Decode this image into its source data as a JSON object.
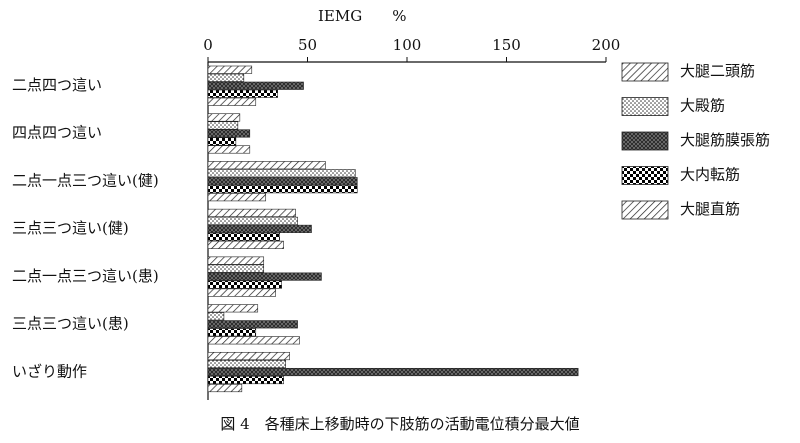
{
  "chart_data": {
    "type": "hbar",
    "xlabel": "IEMG　　%",
    "caption": "図 4　各種床上移動時の下肢筋の活動電位積分最大値",
    "categories": [
      "二点四つ這い",
      "四点四つ這い",
      "二点一点三つ這い(健)",
      "三点三つ這い(健)",
      "二点一点三つ這い(患)",
      "三点三つ這い(患)",
      "いざり動作"
    ],
    "series": [
      {
        "name": "大腿二頭筋",
        "pattern": "hatch",
        "values": [
          22,
          16,
          59,
          44,
          28,
          25,
          41
        ]
      },
      {
        "name": "大殿筋",
        "pattern": "dots",
        "values": [
          18,
          15,
          74,
          45,
          28,
          8,
          39
        ]
      },
      {
        "name": "大腿筋膜張筋",
        "pattern": "dark",
        "values": [
          48,
          21,
          75,
          52,
          57,
          45,
          186
        ]
      },
      {
        "name": "大内転筋",
        "pattern": "checker",
        "values": [
          35,
          14,
          75,
          36,
          37,
          24,
          38
        ]
      },
      {
        "name": "大腿直筋",
        "pattern": "hatch",
        "values": [
          24,
          21,
          29,
          38,
          34,
          46,
          17
        ]
      }
    ],
    "xlim": [
      0,
      200
    ],
    "xticks": [
      0,
      50,
      100,
      150,
      200
    ]
  }
}
